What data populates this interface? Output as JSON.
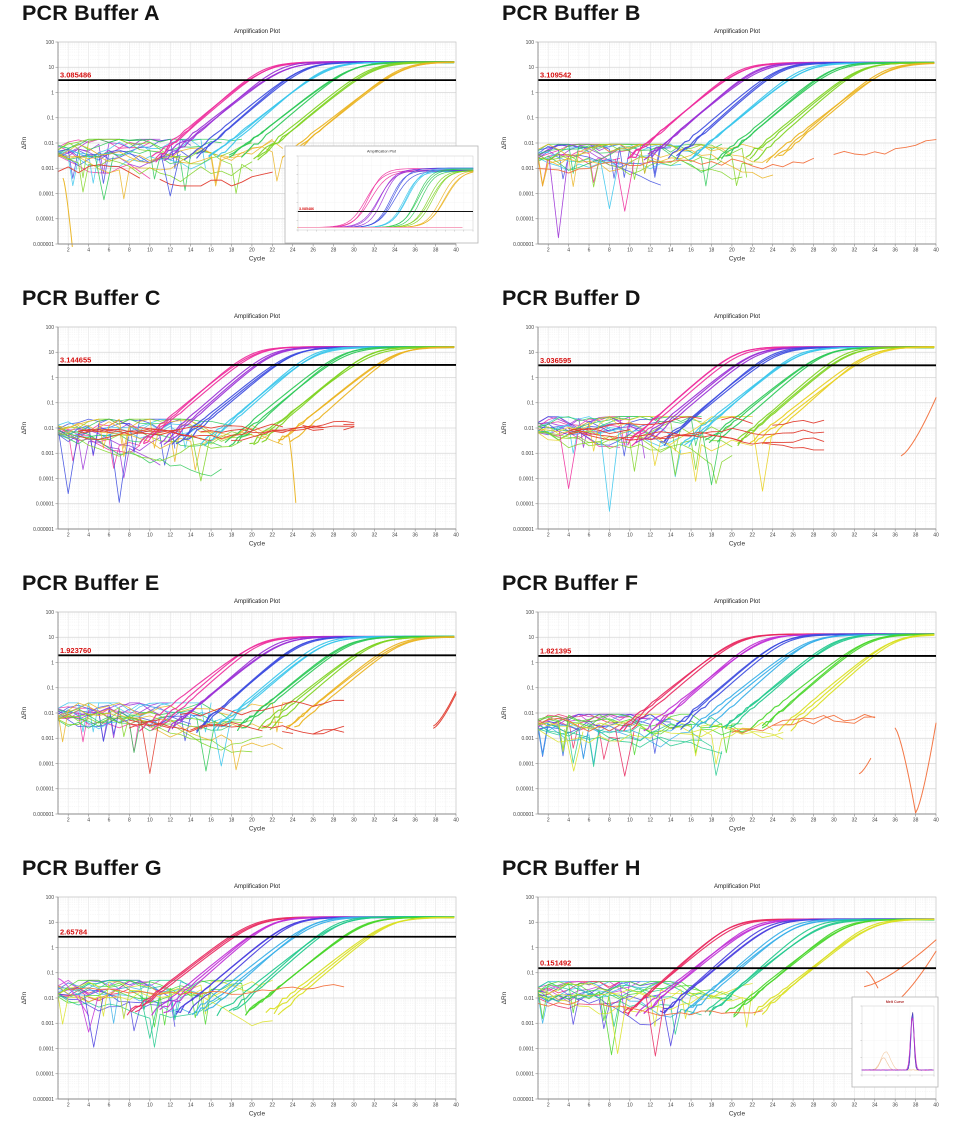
{
  "page": {
    "background": "#ffffff"
  },
  "panels_meta": {
    "chart_title": "Amplification Plot",
    "xlabel": "Cycle",
    "ylabel": "ΔRn",
    "yticks": [
      "100",
      "10",
      "1",
      "0.1",
      "0.01",
      "0.001",
      "0.0001",
      "0.00001",
      "0.000001"
    ],
    "xticks": [
      2,
      4,
      6,
      8,
      10,
      12,
      14,
      16,
      18,
      20,
      22,
      24,
      26,
      28,
      30,
      32,
      34,
      36,
      38,
      40
    ]
  },
  "chart_data": {
    "type": "line",
    "x_axis": {
      "label": "Cycle",
      "range": [
        1,
        40
      ]
    },
    "y_axis": {
      "label": "ΔRn",
      "scale": "log10",
      "range": [
        1e-06,
        100
      ]
    },
    "series_colors_meaning": "seven 10-fold dilution groups (3 replicates each) plus red/orange no-template controls",
    "panels": [
      {
        "title": "PCR Buffer A",
        "threshold_label": "3.085486",
        "threshold_value": 3.085486,
        "plateau": 16,
        "noise_level": -2.75,
        "seed": 3,
        "cts": [
          19.6,
          21.2,
          23.3,
          25.6,
          27.9,
          30.1,
          32.9
        ],
        "colors": [
          "#ee2c9c",
          "#9a2fd6",
          "#3d4ce0",
          "#38c5ec",
          "#2dc957",
          "#7ed321",
          "#eab31f"
        ],
        "distractors": [
          {
            "color": "#e23b2e",
            "from": 1,
            "to": 23,
            "level": -2.9,
            "amp": 0.5,
            "n": 1
          }
        ],
        "tails": [
          {
            "color": "#eab31f",
            "x0": 1.5,
            "x1": 2.4,
            "y0": -3.4,
            "y1": -6.1,
            "n": 1
          }
        ],
        "spikes": [
          {
            "color": "#2dc957",
            "x": 5.5,
            "ylo": -4.25
          },
          {
            "color": "#3d4ce0",
            "x": 12,
            "ylo": -4.1
          }
        ],
        "inset": {
          "type": "amplification",
          "title": "Amplification Plot",
          "threshold_label": "3.085486"
        }
      },
      {
        "title": "PCR Buffer B",
        "threshold_label": "3.109542",
        "threshold_value": 3.109542,
        "plateau": 15,
        "noise_level": -2.95,
        "seed": 7,
        "cts": [
          19.3,
          21.0,
          23.2,
          25.5,
          28.4,
          31.0,
          33.6
        ],
        "colors": [
          "#ee2c9c",
          "#9a2fd6",
          "#3d4ce0",
          "#38c5ec",
          "#2dc957",
          "#7ed321",
          "#eab31f"
        ],
        "distractors": [
          {
            "color": "#f2703c",
            "from": 1,
            "to": 40,
            "level": -3.1,
            "amp": 0.45,
            "n": 1,
            "end_level": -2.1
          }
        ],
        "tails": [],
        "spikes": [
          {
            "color": "#9a2fd6",
            "x": 3,
            "ylo": -5.75
          },
          {
            "color": "#38c5ec",
            "x": 8,
            "ylo": -4.6
          },
          {
            "color": "#ee2c9c",
            "x": 9.5,
            "ylo": -4.7
          }
        ],
        "inset": null
      },
      {
        "title": "PCR Buffer C",
        "threshold_label": "3.144655",
        "threshold_value": 3.144655,
        "plateau": 16,
        "noise_level": -2.55,
        "seed": 11,
        "cts": [
          18.5,
          20.3,
          22.3,
          24.6,
          27.4,
          29.9,
          32.4
        ],
        "colors": [
          "#ee2c9c",
          "#9a2fd6",
          "#3d4ce0",
          "#38c5ec",
          "#2dc957",
          "#7ed321",
          "#eab31f"
        ],
        "distractors": [
          {
            "color": "#e23b2e",
            "from": 3,
            "to": 30,
            "level": -2.15,
            "amp": 0.3,
            "n": 4
          }
        ],
        "tails": [
          {
            "color": "#eab31f",
            "x0": 23.6,
            "x1": 24.3,
            "y0": -2.3,
            "y1": -4.95,
            "n": 1
          }
        ],
        "spikes": [
          {
            "color": "#3d4ce0",
            "x": 2,
            "ylo": -4.6
          },
          {
            "color": "#3d4ce0",
            "x": 7,
            "ylo": -4.95
          },
          {
            "color": "#7ed321",
            "x": 15,
            "ylo": -4.1
          }
        ],
        "inset": null
      },
      {
        "title": "PCR Buffer D",
        "threshold_label": "3.036595",
        "threshold_value": 3.036595,
        "plateau": 16,
        "noise_level": -2.45,
        "seed": 5,
        "cts": [
          18.8,
          20.5,
          22.5,
          24.8,
          27.3,
          29.6,
          31.9
        ],
        "colors": [
          "#ee2c9c",
          "#9a2fd6",
          "#3d4ce0",
          "#38c5ec",
          "#2dc957",
          "#7ed321",
          "#e8cf1e"
        ],
        "distractors": [
          {
            "color": "#e23b2e",
            "from": 4,
            "to": 29,
            "level": -2.1,
            "amp": 0.28,
            "n": 4
          }
        ],
        "tails": [
          {
            "color": "#f2703c",
            "x0": 36.6,
            "x1": 40,
            "y0": -3.1,
            "y1": -0.8,
            "n": 1
          }
        ],
        "spikes": [
          {
            "color": "#38c5ec",
            "x": 8,
            "ylo": -5.3
          },
          {
            "color": "#ee2c9c",
            "x": 4,
            "ylo": -4.4
          },
          {
            "color": "#e8cf1e",
            "x": 23,
            "ylo": -4.5
          },
          {
            "color": "#2dc957",
            "x": 18,
            "ylo": -4.25
          }
        ],
        "inset": null
      },
      {
        "title": "PCR Buffer E",
        "threshold_label": "1.923760",
        "threshold_value": 1.92376,
        "plateau": 10.5,
        "noise_level": -2.5,
        "seed": 9,
        "cts": [
          18.8,
          20.9,
          23.1,
          25.3,
          27.7,
          30.1,
          32.6
        ],
        "colors": [
          "#ee2c9c",
          "#9a2fd6",
          "#3d4ce0",
          "#38c5ec",
          "#2dc957",
          "#7ed321",
          "#eab31f"
        ],
        "distractors": [
          {
            "color": "#e23b2e",
            "from": 8,
            "to": 29,
            "level": -2.3,
            "amp": 0.35,
            "n": 3
          }
        ],
        "tails": [
          {
            "color": "#e23b2e",
            "x0": 37.8,
            "x1": 40,
            "y0": -2.6,
            "y1": -1.25,
            "n": 2
          }
        ],
        "spikes": [
          {
            "color": "#e23b2e",
            "x": 10,
            "ylo": -4.4
          },
          {
            "color": "#2dc957",
            "x": 15.5,
            "ylo": -4.3
          },
          {
            "color": "#38c5ec",
            "x": 17,
            "ylo": -4.1
          }
        ],
        "inset": null
      },
      {
        "title": "PCR Buffer F",
        "threshold_label": "1.821395",
        "threshold_value": 1.821395,
        "plateau": 13,
        "noise_level": -2.95,
        "seed": 13,
        "cts": [
          18.3,
          20.6,
          22.9,
          25.4,
          28.1,
          31.1,
          33.6
        ],
        "colors": [
          "#e8285f",
          "#c02fd6",
          "#3d4ce0",
          "#35aee8",
          "#1fc98c",
          "#49d62a",
          "#d9e021"
        ],
        "distractors": [
          {
            "color": "#f2703c",
            "from": 1,
            "to": 9,
            "level": -2.5,
            "amp": 0.5,
            "n": 1
          },
          {
            "color": "#f2703c",
            "from": 20,
            "to": 34,
            "level": -2.85,
            "amp": 0.5,
            "n": 2
          }
        ],
        "tails": [
          {
            "color": "#f2703c",
            "x0": 36,
            "x1": 38,
            "y0": -2.6,
            "y1": -5.95,
            "n": 1
          },
          {
            "color": "#f2703c",
            "x0": 38,
            "x1": 40,
            "y0": -5.95,
            "y1": -2.4,
            "n": 1
          },
          {
            "color": "#f2703c",
            "x0": 32.5,
            "x1": 33.6,
            "y0": -4.4,
            "y1": -3.8,
            "n": 1
          }
        ],
        "spikes": [
          {
            "color": "#d9e021",
            "x": 4.5,
            "ylo": -4.3
          },
          {
            "color": "#e8285f",
            "x": 9.5,
            "ylo": -4.5
          }
        ],
        "inset": null
      },
      {
        "title": "PCR Buffer G",
        "threshold_label": "2.65784",
        "threshold_value": 2.65784,
        "plateau": 16,
        "noise_level": -2.2,
        "seed": 17,
        "cts": [
          18.0,
          19.9,
          21.9,
          24.1,
          26.5,
          29.0,
          31.4
        ],
        "colors": [
          "#e8285f",
          "#c02fd6",
          "#4a3fe0",
          "#35aee8",
          "#1fc98c",
          "#49d62a",
          "#d9e021"
        ],
        "distractors": [
          {
            "color": "#f2703c",
            "from": 2,
            "to": 29,
            "level": -1.82,
            "amp": 0.22,
            "n": 1
          }
        ],
        "tails": [
          {
            "color": "#d94fe2",
            "x0": 1,
            "x1": 4,
            "y0": -1.22,
            "y1": -2.7,
            "n": 1
          }
        ],
        "spikes": [
          {
            "color": "#c02fd6",
            "x": 4,
            "ylo": -3.35
          },
          {
            "color": "#4a3fe0",
            "x": 4.5,
            "ylo": -3.95
          },
          {
            "color": "#1fc98c",
            "x": 10,
            "ylo": -3.6
          }
        ],
        "inset": null
      },
      {
        "title": "PCR Buffer H",
        "threshold_label": "0.151492",
        "threshold_value": 0.151492,
        "plateau": 13,
        "noise_level": -2.25,
        "seed": 21,
        "cts": [
          14.7,
          16.5,
          18.4,
          20.6,
          22.9,
          25.4,
          27.9
        ],
        "colors": [
          "#e8285f",
          "#c02fd6",
          "#4a3fe0",
          "#35aee8",
          "#1fc98c",
          "#49d62a",
          "#d9e021"
        ],
        "distractors": [
          {
            "color": "#f2703c",
            "from": 1,
            "to": 23,
            "level": -2.05,
            "amp": 0.3,
            "n": 1
          }
        ],
        "tails": [
          {
            "color": "#f2703c",
            "x0": 33,
            "x1": 40,
            "y0": -1.55,
            "y1": 0.3,
            "n": 1
          },
          {
            "color": "#f2703c",
            "x0": 35.5,
            "x1": 40,
            "y0": -2.3,
            "y1": -0.15,
            "n": 1
          },
          {
            "color": "#f2703c",
            "x0": 33.2,
            "x1": 34.3,
            "y0": -0.95,
            "y1": -1.6,
            "n": 1
          }
        ],
        "spikes": [
          {
            "color": "#49d62a",
            "x": 8.2,
            "ylo": -4.25
          },
          {
            "color": "#e8285f",
            "x": 12.5,
            "ylo": -4.3
          },
          {
            "color": "#4a3fe0",
            "x": 14,
            "ylo": -3.9
          },
          {
            "color": "#d9e021",
            "x": 8.8,
            "ylo": -4.2
          }
        ],
        "inset": {
          "type": "melt",
          "title": "Melt Curve"
        }
      }
    ]
  }
}
